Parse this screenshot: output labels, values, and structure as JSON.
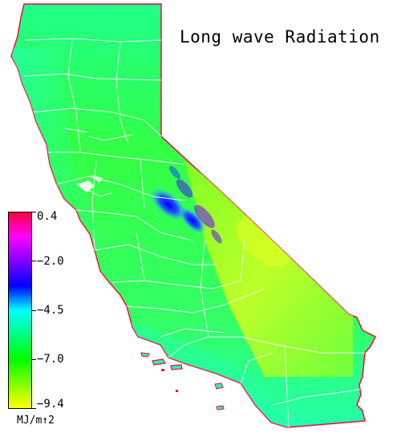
{
  "title": "Long wave Radiation",
  "legend": {
    "units": "MJ/m↑2",
    "tick_labels": [
      "0.4",
      "−2.0",
      "−4.5",
      "−7.0",
      "−9.4"
    ],
    "colors": [
      "#ff0040",
      "#ff00ff",
      "#8000ff",
      "#0000ff",
      "#00ffff",
      "#00ff80",
      "#00ff00",
      "#80ff00",
      "#ffff00"
    ]
  },
  "map": {
    "region": "California",
    "base_color": "#33ff55",
    "low_color": "#e6ff22",
    "high_color": "#0000ff",
    "boundary_color": "#ffffff",
    "edge_color": "#ff0044"
  }
}
